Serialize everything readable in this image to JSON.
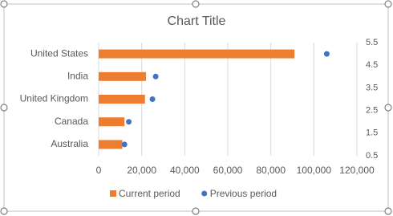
{
  "chart_data": {
    "type": "bar",
    "title": "Chart Title",
    "categories": [
      "Australia",
      "Canada",
      "United Kingdom",
      "India",
      "United States"
    ],
    "series": [
      {
        "name": "Current period",
        "type": "bar",
        "color": "#ed7d31",
        "values": [
          11000,
          12000,
          21500,
          22000,
          91000
        ]
      },
      {
        "name": "Previous period",
        "type": "scatter",
        "color": "#4472c4",
        "x": [
          12000,
          14000,
          25000,
          26500,
          106000
        ],
        "values": [
          1,
          2,
          3,
          4,
          5
        ],
        "axis": "y2"
      }
    ],
    "xlim": [
      0,
      120000
    ],
    "xticks": [
      0,
      {
        "value": 20000,
        "label": "20,000"
      },
      {
        "value": 40000,
        "label": "40,000"
      },
      {
        "value": 60000,
        "label": "60,000"
      },
      {
        "value": 80000,
        "label": "80,000"
      },
      {
        "value": 100000,
        "label": "100,000"
      },
      {
        "value": 120000,
        "label": "120,000"
      }
    ],
    "y2lim": [
      0.5,
      5.5
    ],
    "y2ticks": [
      0.5,
      1.5,
      2.5,
      3.5,
      4.5,
      5.5
    ],
    "grid": true,
    "legend": "bottom"
  }
}
